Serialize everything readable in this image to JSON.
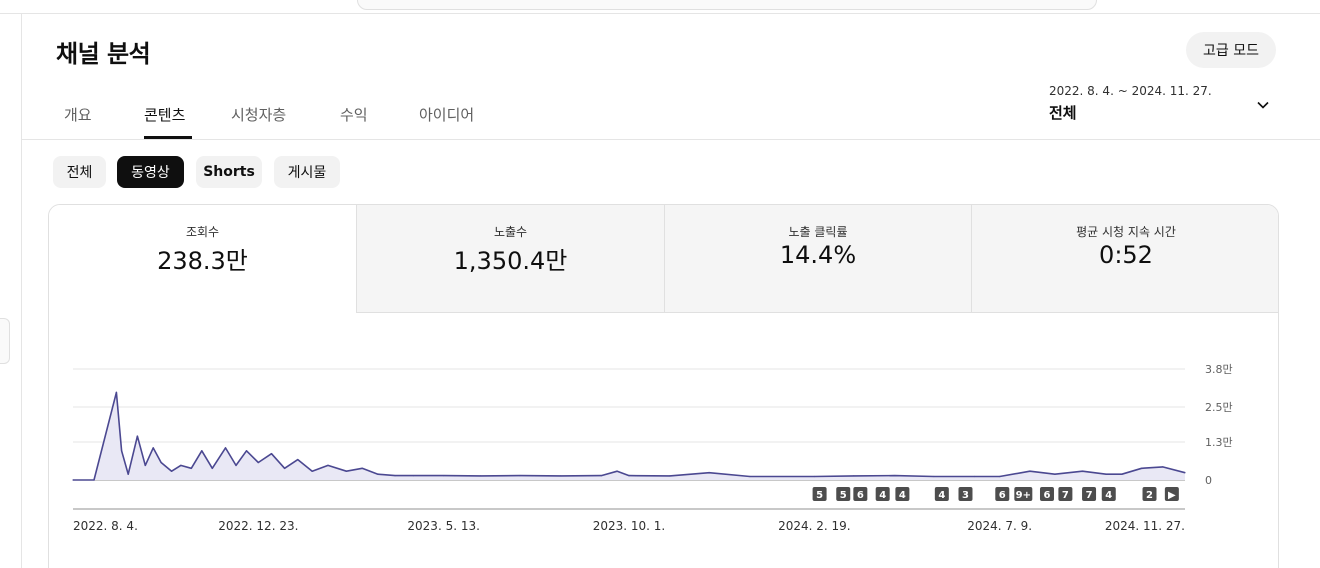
{
  "page": {
    "title": "채널 분석"
  },
  "header": {
    "advanced_mode_label": "고급 모드"
  },
  "tabs": [
    {
      "label": "개요",
      "active": false
    },
    {
      "label": "콘텐츠",
      "active": true
    },
    {
      "label": "시청자층",
      "active": false
    },
    {
      "label": "수익",
      "active": false
    },
    {
      "label": "아이디어",
      "active": false
    }
  ],
  "date_range": {
    "range": "2022. 8. 4. ~ 2024. 11. 27.",
    "label": "전체",
    "icon": "chevron-down-icon"
  },
  "content_chips": [
    {
      "label": "전체",
      "active": false
    },
    {
      "label": "동영상",
      "active": true
    },
    {
      "label": "Shorts",
      "active": false
    },
    {
      "label": "게시물",
      "active": false
    }
  ],
  "metrics": [
    {
      "label": "조회수",
      "value": "238.3만",
      "selected": true
    },
    {
      "label": "노출수",
      "value": "1,350.4만",
      "selected": false
    },
    {
      "label": "노출 클릭률",
      "value": "14.4%",
      "selected": false
    },
    {
      "label": "평균 시청 지속 시간",
      "value": "0:52",
      "selected": false
    }
  ],
  "colors": {
    "line": "#4b4891",
    "fill": "#e9e8f5",
    "active_chip": "#0f0f0f"
  },
  "chart_data": {
    "type": "area",
    "series": [
      {
        "x": [
          "2022-08-04",
          "2022-08-20",
          "2022-09-06",
          "2022-09-10",
          "2022-09-15",
          "2022-09-22",
          "2022-09-28",
          "2022-10-04",
          "2022-10-10",
          "2022-10-18",
          "2022-10-25",
          "2022-11-02",
          "2022-11-10",
          "2022-11-18",
          "2022-11-28",
          "2022-12-06",
          "2022-12-14",
          "2022-12-23",
          "2023-01-02",
          "2023-01-12",
          "2023-01-22",
          "2023-02-02",
          "2023-02-14",
          "2023-02-28",
          "2023-03-12",
          "2023-03-24",
          "2023-04-06",
          "2023-04-20",
          "2023-05-13",
          "2023-06-10",
          "2023-07-10",
          "2023-08-10",
          "2023-09-10",
          "2023-09-22",
          "2023-10-01",
          "2023-11-01",
          "2023-12-01",
          "2024-01-01",
          "2024-02-19",
          "2024-03-20",
          "2024-04-20",
          "2024-05-20",
          "2024-06-20",
          "2024-07-09",
          "2024-08-01",
          "2024-08-20",
          "2024-09-10",
          "2024-09-28",
          "2024-10-10",
          "2024-10-25",
          "2024-11-10",
          "2024-11-27"
        ],
        "values": [
          0,
          0,
          30000,
          10000,
          2000,
          15000,
          5000,
          11000,
          6000,
          3000,
          5000,
          4000,
          10000,
          4000,
          11000,
          5000,
          10000,
          6000,
          9000,
          4000,
          7000,
          3000,
          5000,
          3000,
          4000,
          2000,
          1500,
          1500,
          1500,
          1400,
          1500,
          1400,
          1500,
          3000,
          1500,
          1400,
          2500,
          1200,
          1200,
          1400,
          1500,
          1200,
          1200,
          1200,
          3000,
          2000,
          3000,
          2000,
          2000,
          4000,
          4500,
          2500
        ]
      }
    ],
    "x_ticks": [
      "2022. 8. 4.",
      "2022. 12. 23.",
      "2023. 5. 13.",
      "2023. 10. 1.",
      "2024. 2. 19.",
      "2024. 7. 9.",
      "2024. 11. 27."
    ],
    "y_ticks": [
      {
        "value": 0,
        "label": "0"
      },
      {
        "value": 13000,
        "label": "1.3만"
      },
      {
        "value": 25000,
        "label": "2.5만"
      },
      {
        "value": 38000,
        "label": "3.8만"
      }
    ],
    "ylim": [
      0,
      38000
    ],
    "grid": true,
    "video_markers": [
      {
        "date": "2024-02-23",
        "label": "5"
      },
      {
        "date": "2024-03-12",
        "label": "5"
      },
      {
        "date": "2024-03-25",
        "label": "6"
      },
      {
        "date": "2024-04-11",
        "label": "4"
      },
      {
        "date": "2024-04-26",
        "label": "4"
      },
      {
        "date": "2024-05-26",
        "label": "4"
      },
      {
        "date": "2024-06-13",
        "label": "3"
      },
      {
        "date": "2024-07-11",
        "label": "6"
      },
      {
        "date": "2024-07-27",
        "label": "9+"
      },
      {
        "date": "2024-08-14",
        "label": "6"
      },
      {
        "date": "2024-08-28",
        "label": "7"
      },
      {
        "date": "2024-09-15",
        "label": "7"
      },
      {
        "date": "2024-09-30",
        "label": "4"
      },
      {
        "date": "2024-10-31",
        "label": "2"
      },
      {
        "date": "2024-11-17",
        "label": "▶"
      }
    ]
  }
}
